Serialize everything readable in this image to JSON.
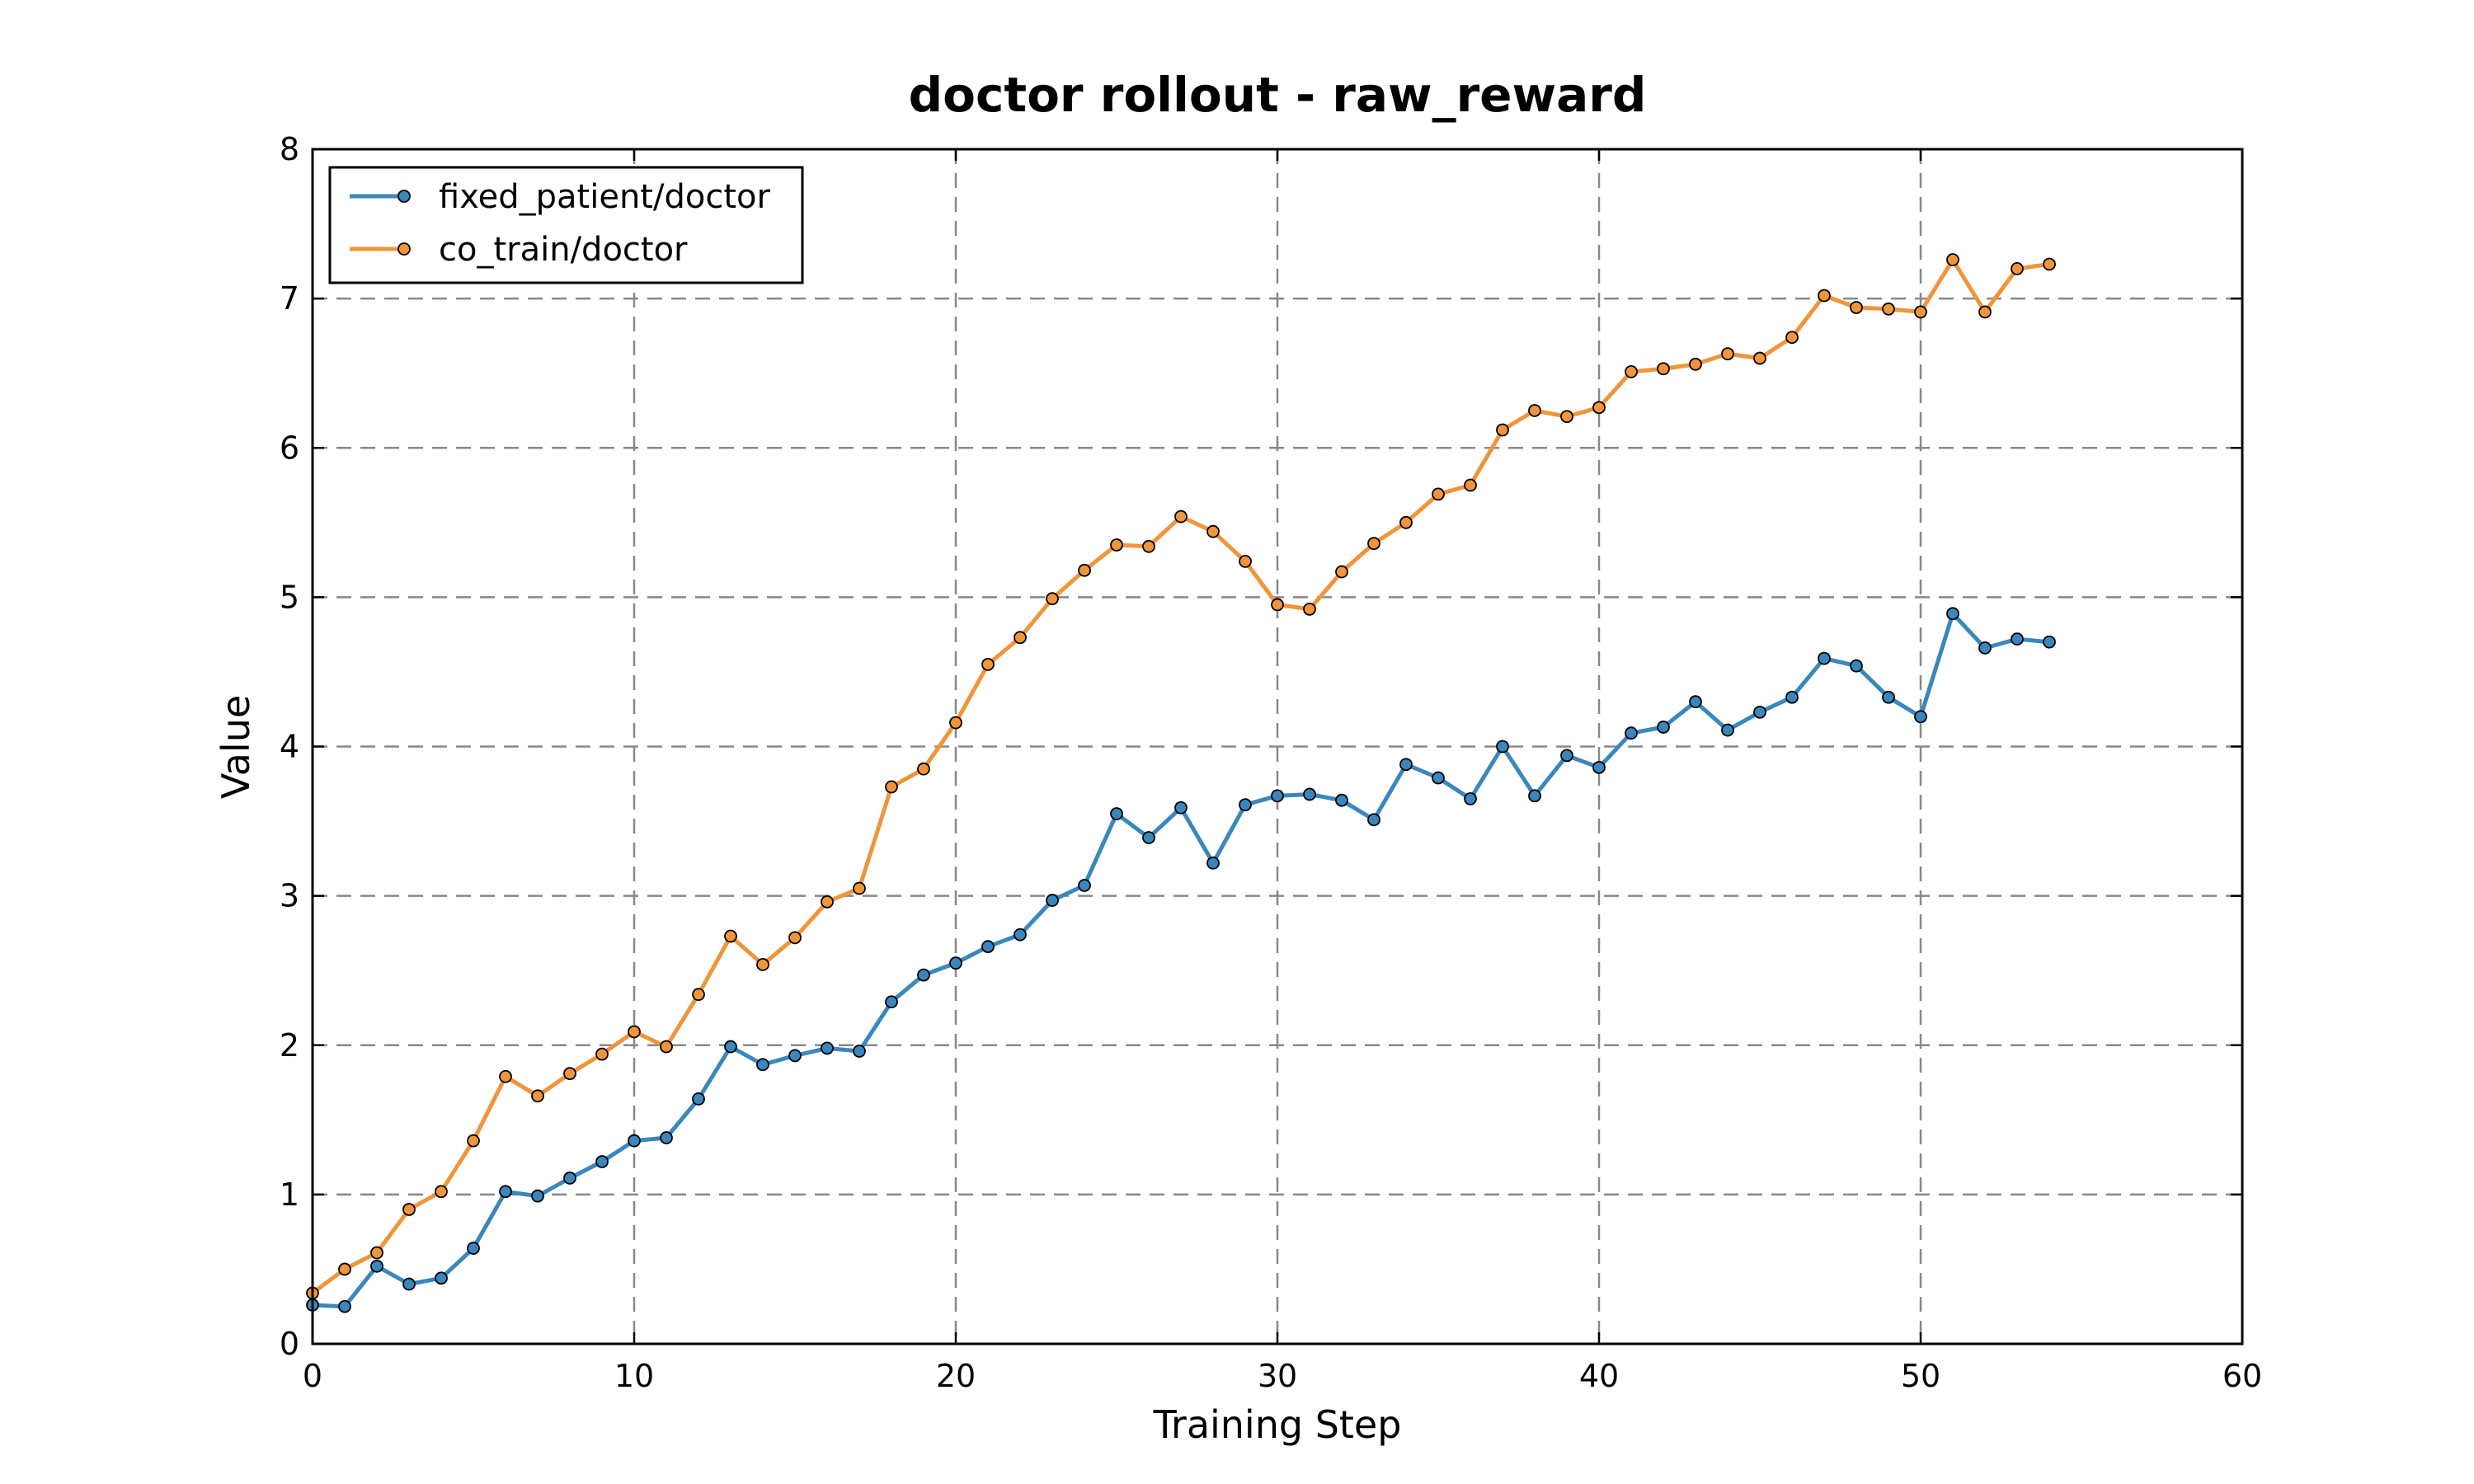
{
  "chart_data": {
    "type": "line",
    "title": "doctor rollout - raw_reward",
    "xlabel": "Training Step",
    "ylabel": "Value",
    "xlim": [
      0,
      60
    ],
    "ylim": [
      0,
      8
    ],
    "xticks": [
      0,
      10,
      20,
      30,
      40,
      50,
      60
    ],
    "yticks": [
      0,
      1,
      2,
      3,
      4,
      5,
      6,
      7,
      8
    ],
    "grid": true,
    "legend_position": "top-left",
    "series": [
      {
        "name": "fixed_patient/doctor",
        "color": "#3a87bd",
        "x": [
          0,
          1,
          2,
          3,
          4,
          5,
          6,
          7,
          8,
          9,
          10,
          11,
          12,
          13,
          14,
          15,
          16,
          17,
          18,
          19,
          20,
          21,
          22,
          23,
          24,
          25,
          26,
          27,
          28,
          29,
          30,
          31,
          32,
          33,
          34,
          35,
          36,
          37,
          38,
          39,
          40,
          41,
          42,
          43,
          44,
          45,
          46,
          47,
          48,
          49,
          50,
          51,
          52,
          53,
          54
        ],
        "y": [
          0.26,
          0.25,
          0.52,
          0.4,
          0.44,
          0.64,
          1.02,
          0.99,
          1.11,
          1.22,
          1.36,
          1.38,
          1.64,
          1.99,
          1.87,
          1.93,
          1.98,
          1.96,
          2.29,
          2.47,
          2.55,
          2.66,
          2.74,
          2.97,
          3.07,
          3.55,
          3.39,
          3.59,
          3.22,
          3.61,
          3.67,
          3.68,
          3.64,
          3.51,
          3.88,
          3.79,
          3.65,
          4.0,
          3.67,
          3.94,
          3.86,
          4.09,
          4.13,
          4.3,
          4.11,
          4.23,
          4.33,
          4.59,
          4.54,
          4.33,
          4.2,
          4.89,
          4.66,
          4.72,
          4.7
        ]
      },
      {
        "name": "co_train/doctor",
        "color": "#f0953a",
        "x": [
          0,
          1,
          2,
          3,
          4,
          5,
          6,
          7,
          8,
          9,
          10,
          11,
          12,
          13,
          14,
          15,
          16,
          17,
          18,
          19,
          20,
          21,
          22,
          23,
          24,
          25,
          26,
          27,
          28,
          29,
          30,
          31,
          32,
          33,
          34,
          35,
          36,
          37,
          38,
          39,
          40,
          41,
          42,
          43,
          44,
          45,
          46,
          47,
          48,
          49,
          50,
          51,
          52,
          53,
          54
        ],
        "y": [
          0.34,
          0.5,
          0.61,
          0.9,
          1.02,
          1.36,
          1.79,
          1.66,
          1.81,
          1.94,
          2.09,
          1.99,
          2.34,
          2.73,
          2.54,
          2.72,
          2.96,
          3.05,
          3.73,
          3.85,
          4.16,
          4.55,
          4.73,
          4.99,
          5.18,
          5.35,
          5.34,
          5.54,
          5.44,
          5.24,
          4.95,
          4.92,
          5.17,
          5.36,
          5.5,
          5.69,
          5.75,
          6.12,
          6.25,
          6.21,
          6.27,
          6.51,
          6.53,
          6.56,
          6.63,
          6.6,
          6.74,
          7.02,
          6.94,
          6.93,
          6.91,
          7.26,
          6.91,
          7.2,
          7.23
        ]
      }
    ]
  }
}
